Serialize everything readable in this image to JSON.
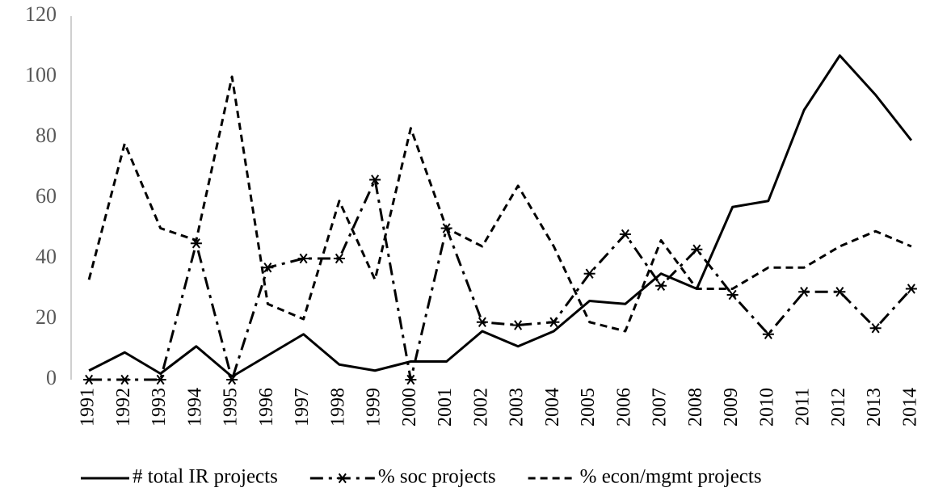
{
  "chart_data": {
    "type": "line",
    "categories": [
      "1991",
      "1992",
      "1993",
      "1994",
      "1995",
      "1996",
      "1997",
      "1998",
      "1999",
      "2000",
      "2001",
      "2002",
      "2003",
      "2004",
      "2005",
      "2006",
      "2007",
      "2008",
      "2009",
      "2010",
      "2011",
      "2012",
      "2013",
      "2014"
    ],
    "series": [
      {
        "name": "# total IR projects",
        "color": "#000000",
        "line_style": "solid",
        "values": [
          3,
          9,
          2,
          11,
          1,
          8,
          15,
          5,
          3,
          6,
          6,
          16,
          11,
          16,
          26,
          25,
          35,
          30,
          57,
          59,
          89,
          107,
          94,
          79
        ]
      },
      {
        "name": "% soc projects",
        "color": "#000000",
        "line_style": "dash-dot",
        "marker": "asterisk",
        "values": [
          0,
          0,
          0,
          45,
          0,
          37,
          40,
          40,
          66,
          0,
          50,
          19,
          18,
          19,
          35,
          48,
          31,
          43,
          28,
          15,
          29,
          29,
          17,
          30
        ]
      },
      {
        "name": "% econ/mgmt projects",
        "color": "#000000",
        "line_style": "dash",
        "values": [
          33,
          78,
          50,
          46,
          100,
          25,
          20,
          59,
          33,
          83,
          50,
          44,
          64,
          44,
          19,
          16,
          46,
          30,
          30,
          37,
          37,
          44,
          49,
          44
        ]
      }
    ],
    "ylim": [
      0,
      120
    ],
    "yticks": [
      0,
      20,
      40,
      60,
      80,
      100,
      120
    ],
    "grid": false,
    "legend": "bottom"
  }
}
